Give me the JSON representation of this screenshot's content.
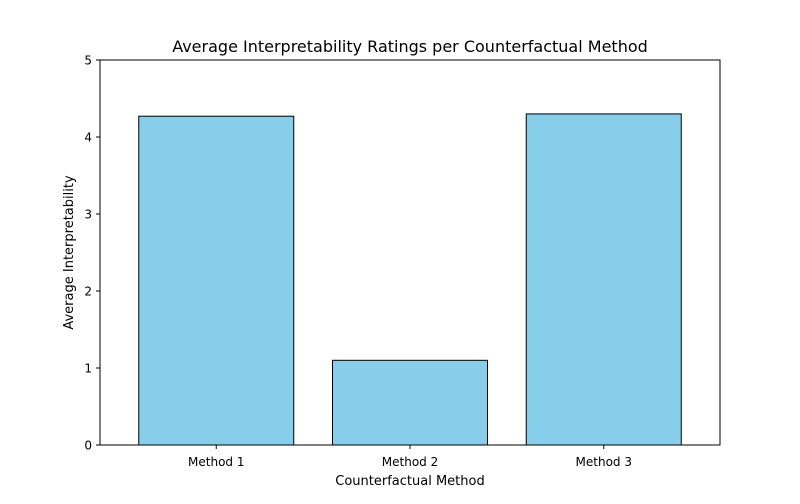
{
  "chart_data": {
    "type": "bar",
    "title": "Average Interpretability Ratings per Counterfactual Method",
    "xlabel": "Counterfactual Method",
    "ylabel": "Average Interpretability",
    "categories": [
      "Method 1",
      "Method 2",
      "Method 3"
    ],
    "values": [
      4.27,
      1.1,
      4.3
    ],
    "ylim": [
      0,
      5
    ],
    "yticks": [
      0,
      1,
      2,
      3,
      4,
      5
    ],
    "grid": false,
    "legend": "none",
    "bar_color": "#87CEEB",
    "bar_edge_color": "#000000"
  }
}
